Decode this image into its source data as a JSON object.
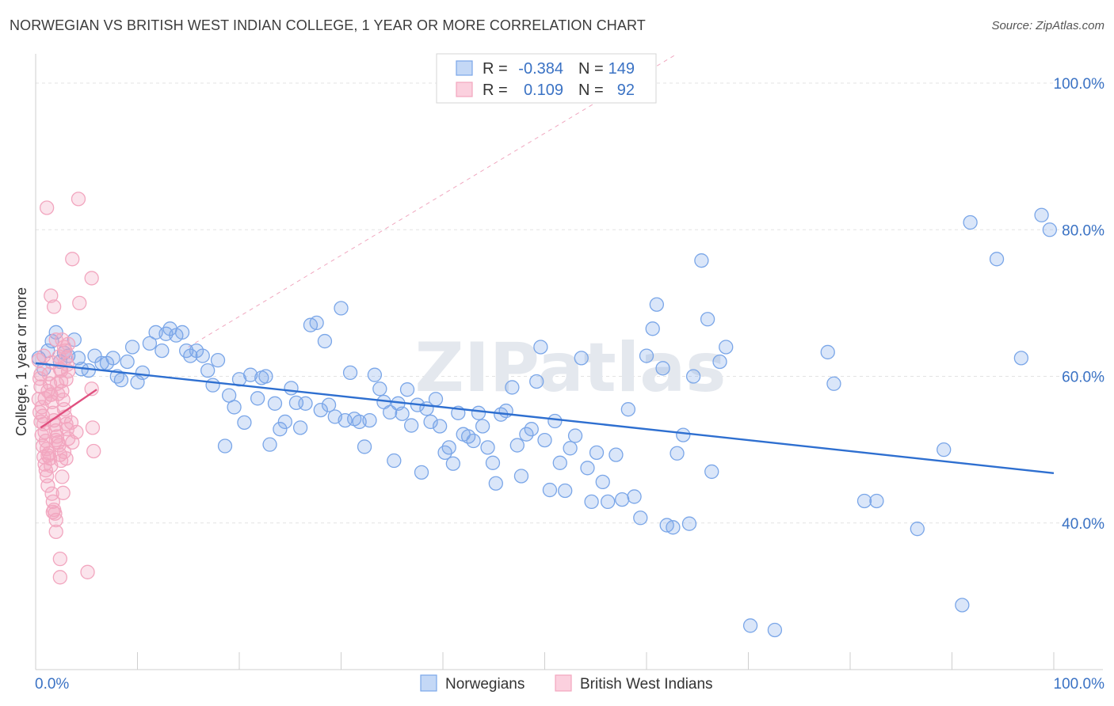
{
  "chart_data": {
    "type": "scatter",
    "title": "NORWEGIAN VS BRITISH WEST INDIAN COLLEGE, 1 YEAR OR MORE CORRELATION CHART",
    "source": "Source: ZipAtlas.com",
    "watermark": "ZIPatlas",
    "xlabel": "",
    "ylabel": "College, 1 year or more",
    "xlim": [
      0,
      100
    ],
    "ylim": [
      20,
      104
    ],
    "x_tick_labels": [
      {
        "value": 0,
        "label": "0.0%"
      },
      {
        "value": 100,
        "label": "100.0%"
      }
    ],
    "y_tick_labels": [
      {
        "value": 100,
        "label": "100.0%"
      },
      {
        "value": 80,
        "label": "80.0%"
      },
      {
        "value": 60,
        "label": "60.0%"
      },
      {
        "value": 40,
        "label": "40.0%"
      }
    ],
    "legend": [
      {
        "series": "Norwegians",
        "r_label": "R =",
        "r_value": "-0.384",
        "n_label": "N =",
        "n_value": "149"
      },
      {
        "series": "British West Indians",
        "r_label": "R =",
        "r_value": "0.109",
        "n_label": "N =",
        "n_value": "92"
      }
    ],
    "series": [
      {
        "name": "Norwegians",
        "color": "#7aa6e8",
        "line_color": "#2e6fd0",
        "trend": {
          "x": [
            0,
            100
          ],
          "y": [
            61.8,
            46.8
          ]
        },
        "points": [
          [
            0.3,
            62.5
          ],
          [
            0.8,
            61.0
          ],
          [
            1.2,
            63.5
          ],
          [
            1.6,
            64.8
          ],
          [
            2.0,
            66.0
          ],
          [
            2.4,
            62.0
          ],
          [
            2.8,
            63.2
          ],
          [
            3.2,
            62.8
          ],
          [
            3.8,
            65.0
          ],
          [
            4.2,
            62.5
          ],
          [
            4.5,
            61.0
          ],
          [
            5.2,
            60.8
          ],
          [
            5.8,
            62.8
          ],
          [
            6.5,
            61.8
          ],
          [
            7.0,
            61.8
          ],
          [
            7.6,
            62.5
          ],
          [
            8.0,
            60.0
          ],
          [
            8.4,
            59.5
          ],
          [
            9.0,
            62.0
          ],
          [
            9.5,
            64.0
          ],
          [
            10.0,
            59.2
          ],
          [
            10.5,
            60.5
          ],
          [
            11.2,
            64.5
          ],
          [
            11.8,
            66.0
          ],
          [
            12.4,
            63.5
          ],
          [
            12.8,
            65.8
          ],
          [
            13.2,
            66.5
          ],
          [
            13.8,
            65.6
          ],
          [
            14.4,
            66.0
          ],
          [
            14.8,
            63.5
          ],
          [
            15.2,
            62.8
          ],
          [
            15.8,
            63.5
          ],
          [
            16.4,
            62.8
          ],
          [
            16.9,
            60.8
          ],
          [
            17.4,
            58.8
          ],
          [
            17.9,
            62.2
          ],
          [
            18.6,
            50.5
          ],
          [
            19.0,
            57.4
          ],
          [
            19.5,
            55.8
          ],
          [
            20.0,
            59.6
          ],
          [
            20.5,
            53.7
          ],
          [
            21.1,
            60.2
          ],
          [
            21.8,
            57.0
          ],
          [
            22.2,
            59.8
          ],
          [
            22.6,
            60.0
          ],
          [
            23.0,
            50.7
          ],
          [
            23.5,
            56.3
          ],
          [
            24.0,
            52.8
          ],
          [
            24.5,
            53.8
          ],
          [
            25.1,
            58.4
          ],
          [
            25.6,
            56.4
          ],
          [
            26.0,
            53.0
          ],
          [
            26.5,
            56.3
          ],
          [
            27.0,
            67.0
          ],
          [
            27.6,
            67.3
          ],
          [
            28.0,
            55.4
          ],
          [
            28.4,
            64.8
          ],
          [
            28.8,
            56.1
          ],
          [
            29.4,
            54.5
          ],
          [
            30.0,
            69.3
          ],
          [
            30.4,
            54.0
          ],
          [
            30.9,
            60.5
          ],
          [
            31.3,
            54.2
          ],
          [
            31.8,
            53.8
          ],
          [
            32.3,
            50.4
          ],
          [
            32.8,
            54.0
          ],
          [
            33.3,
            60.2
          ],
          [
            33.8,
            58.3
          ],
          [
            34.2,
            56.5
          ],
          [
            34.8,
            55.1
          ],
          [
            35.2,
            48.5
          ],
          [
            35.6,
            56.3
          ],
          [
            36.0,
            54.9
          ],
          [
            36.5,
            58.2
          ],
          [
            36.9,
            53.3
          ],
          [
            37.5,
            56.1
          ],
          [
            37.9,
            46.9
          ],
          [
            38.4,
            55.6
          ],
          [
            38.8,
            53.8
          ],
          [
            39.3,
            56.9
          ],
          [
            39.7,
            53.2
          ],
          [
            40.2,
            49.6
          ],
          [
            40.6,
            50.3
          ],
          [
            41.0,
            48.1
          ],
          [
            41.5,
            55.0
          ],
          [
            42.0,
            52.1
          ],
          [
            42.5,
            51.8
          ],
          [
            43.0,
            51.2
          ],
          [
            43.5,
            55.0
          ],
          [
            43.9,
            53.2
          ],
          [
            44.4,
            50.3
          ],
          [
            44.9,
            48.2
          ],
          [
            45.2,
            45.4
          ],
          [
            45.7,
            54.8
          ],
          [
            46.2,
            55.3
          ],
          [
            46.8,
            58.5
          ],
          [
            47.3,
            50.6
          ],
          [
            47.7,
            46.4
          ],
          [
            48.2,
            52.1
          ],
          [
            48.7,
            52.8
          ],
          [
            49.2,
            59.3
          ],
          [
            49.6,
            64.0
          ],
          [
            50.0,
            51.3
          ],
          [
            50.5,
            44.5
          ],
          [
            51.0,
            53.9
          ],
          [
            51.5,
            48.2
          ],
          [
            52.0,
            44.4
          ],
          [
            52.5,
            50.2
          ],
          [
            53.0,
            51.9
          ],
          [
            53.6,
            62.5
          ],
          [
            54.2,
            47.5
          ],
          [
            54.6,
            42.9
          ],
          [
            55.1,
            49.6
          ],
          [
            55.7,
            45.6
          ],
          [
            56.2,
            42.9
          ],
          [
            57.0,
            49.3
          ],
          [
            57.6,
            43.2
          ],
          [
            58.2,
            55.5
          ],
          [
            58.8,
            43.6
          ],
          [
            59.4,
            40.7
          ],
          [
            60.0,
            62.8
          ],
          [
            60.6,
            66.5
          ],
          [
            61.0,
            69.8
          ],
          [
            61.6,
            61.1
          ],
          [
            62.0,
            39.7
          ],
          [
            62.6,
            39.4
          ],
          [
            63.0,
            49.5
          ],
          [
            63.6,
            52.0
          ],
          [
            64.2,
            39.9
          ],
          [
            64.6,
            60.0
          ],
          [
            65.4,
            75.8
          ],
          [
            66.0,
            67.8
          ],
          [
            66.4,
            47.0
          ],
          [
            67.2,
            62.0
          ],
          [
            67.8,
            64.0
          ],
          [
            70.2,
            26.0
          ],
          [
            72.6,
            25.4
          ],
          [
            77.8,
            63.3
          ],
          [
            78.4,
            59.0
          ],
          [
            81.4,
            43.0
          ],
          [
            82.6,
            43.0
          ],
          [
            86.6,
            39.2
          ],
          [
            89.2,
            50.0
          ],
          [
            91.0,
            28.8
          ],
          [
            91.8,
            81.0
          ],
          [
            94.4,
            76.0
          ],
          [
            98.8,
            82.0
          ],
          [
            96.8,
            62.5
          ],
          [
            99.6,
            80.0
          ]
        ]
      },
      {
        "name": "British West Indians",
        "color": "#f2a6bf",
        "line_color": "#e0507f",
        "trend": {
          "x": [
            0.5,
            6.0
          ],
          "y": [
            53.0,
            58.2
          ]
        },
        "points": [
          [
            0.3,
            62.2
          ],
          [
            0.4,
            59.7
          ],
          [
            0.5,
            58.6
          ],
          [
            0.6,
            55.8
          ],
          [
            0.7,
            54.6
          ],
          [
            0.8,
            53.5
          ],
          [
            0.9,
            52.4
          ],
          [
            1.0,
            51.2
          ],
          [
            1.1,
            50.1
          ],
          [
            1.2,
            49.2
          ],
          [
            0.3,
            56.9
          ],
          [
            0.4,
            55.1
          ],
          [
            0.5,
            53.8
          ],
          [
            0.6,
            52.0
          ],
          [
            0.7,
            50.5
          ],
          [
            0.8,
            49.0
          ],
          [
            0.9,
            48.0
          ],
          [
            1.0,
            47.2
          ],
          [
            1.1,
            46.4
          ],
          [
            1.2,
            45.1
          ],
          [
            1.3,
            60.3
          ],
          [
            1.4,
            59.0
          ],
          [
            1.5,
            57.5
          ],
          [
            1.6,
            56.5
          ],
          [
            1.7,
            55.0
          ],
          [
            1.8,
            54.0
          ],
          [
            1.9,
            53.4
          ],
          [
            2.0,
            52.6
          ],
          [
            2.1,
            51.8
          ],
          [
            2.2,
            51.0
          ],
          [
            1.3,
            49.5
          ],
          [
            1.4,
            48.8
          ],
          [
            1.5,
            47.8
          ],
          [
            1.6,
            44.0
          ],
          [
            1.7,
            42.9
          ],
          [
            1.8,
            41.8
          ],
          [
            1.9,
            41.3
          ],
          [
            2.0,
            40.4
          ],
          [
            2.1,
            59.0
          ],
          [
            2.2,
            57.6
          ],
          [
            2.3,
            62.7
          ],
          [
            2.4,
            61.0
          ],
          [
            2.5,
            59.3
          ],
          [
            2.6,
            58.0
          ],
          [
            2.7,
            56.8
          ],
          [
            2.8,
            55.5
          ],
          [
            2.9,
            54.5
          ],
          [
            3.0,
            53.5
          ],
          [
            3.1,
            52.8
          ],
          [
            3.2,
            51.5
          ],
          [
            2.3,
            50.6
          ],
          [
            2.4,
            49.3
          ],
          [
            2.5,
            48.5
          ],
          [
            2.6,
            46.3
          ],
          [
            2.7,
            44.1
          ],
          [
            2.8,
            64.0
          ],
          [
            2.9,
            63.5
          ],
          [
            3.0,
            62.5
          ],
          [
            3.1,
            61.6
          ],
          [
            3.2,
            60.7
          ],
          [
            1.1,
            83.0
          ],
          [
            4.2,
            84.2
          ],
          [
            3.6,
            76.0
          ],
          [
            5.5,
            73.4
          ],
          [
            1.5,
            71.0
          ],
          [
            1.8,
            69.5
          ],
          [
            4.3,
            70.0
          ],
          [
            2.0,
            65.0
          ],
          [
            2.6,
            65.0
          ],
          [
            3.2,
            64.4
          ],
          [
            0.8,
            62.8
          ],
          [
            1.6,
            61.9
          ],
          [
            0.5,
            60.3
          ],
          [
            2.5,
            60.8
          ],
          [
            1.2,
            58.0
          ],
          [
            5.5,
            58.3
          ],
          [
            0.9,
            57.0
          ],
          [
            3.5,
            53.7
          ],
          [
            5.6,
            53.0
          ],
          [
            3.6,
            51.0
          ],
          [
            5.7,
            49.8
          ],
          [
            2.0,
            38.8
          ],
          [
            2.4,
            35.1
          ],
          [
            2.4,
            32.6
          ],
          [
            5.1,
            33.3
          ],
          [
            2.0,
            51.3
          ],
          [
            4.0,
            52.4
          ],
          [
            2.8,
            49.7
          ],
          [
            1.5,
            57.5
          ],
          [
            3.0,
            59.6
          ],
          [
            1.7,
            41.5
          ],
          [
            3.0,
            48.8
          ]
        ]
      }
    ]
  }
}
